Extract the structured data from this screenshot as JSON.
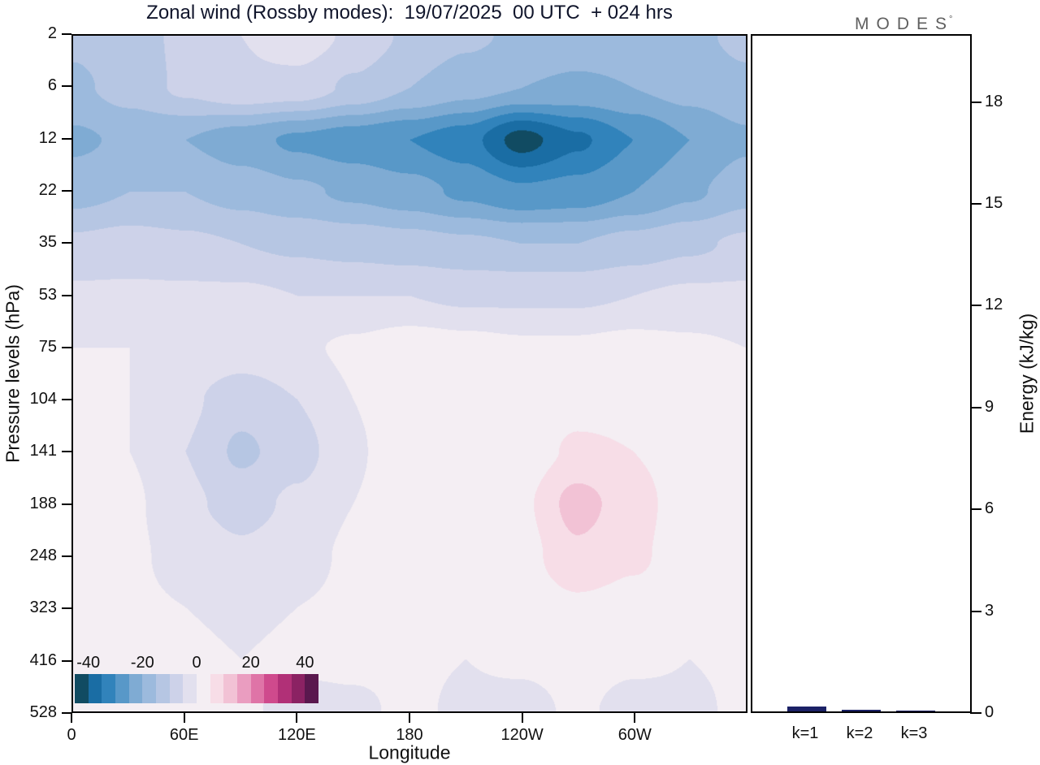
{
  "title": "Zonal wind (Rossby modes):  19/07/2025  00 UTC  + 024 hrs",
  "logo": {
    "text": "MODES",
    "degree": "°"
  },
  "axes": {
    "y_label": "Pressure levels (hPa)",
    "x_label": "Longitude",
    "energy_label": "Energy (kJ/kg)",
    "pressure_ticks": [
      "2",
      "6",
      "12",
      "22",
      "35",
      "53",
      "75",
      "104",
      "141",
      "188",
      "248",
      "323",
      "416",
      "528"
    ],
    "longitude_ticks": [
      {
        "label": "0",
        "lon": 0
      },
      {
        "label": "60E",
        "lon": 60
      },
      {
        "label": "120E",
        "lon": 120
      },
      {
        "label": "180",
        "lon": 180
      },
      {
        "label": "120W",
        "lon": 240
      },
      {
        "label": "60W",
        "lon": 300
      }
    ],
    "energy_ticks": [
      0,
      3,
      6,
      9,
      12,
      15,
      18
    ],
    "energy_axis_max": 20
  },
  "colorbar": {
    "labels": [
      {
        "text": "-40",
        "value": -40
      },
      {
        "text": "-20",
        "value": -20
      },
      {
        "text": "0",
        "value": 0
      },
      {
        "text": "20",
        "value": 20
      },
      {
        "text": "40",
        "value": 40
      }
    ]
  },
  "chart_data": [
    {
      "type": "heatmap",
      "title": "Zonal wind (Rossby modes): 19/07/2025 00 UTC + 024 hrs",
      "xlabel": "Longitude",
      "ylabel": "Pressure levels (hPa)",
      "x_lon": [
        0,
        30,
        60,
        90,
        120,
        150,
        180,
        210,
        240,
        270,
        300,
        330,
        360
      ],
      "y_pressure": [
        2,
        6,
        12,
        22,
        35,
        53,
        75,
        104,
        141,
        188,
        248,
        323,
        416,
        528
      ],
      "level_min": -45,
      "level_max": 45,
      "level_step": 5,
      "colors": [
        "#114b62",
        "#1a6da4",
        "#3183bb",
        "#5898c8",
        "#7fabd3",
        "#9cbadd",
        "#b6c6e3",
        "#cdd2e9",
        "#e2e0ee",
        "#f4eef3",
        "#f7dde7",
        "#f2c2d5",
        "#ea9dc0",
        "#df74a7",
        "#cf4a8d",
        "#b13077",
        "#8b2263",
        "#5a184e"
      ],
      "values": [
        [
          -14,
          -12,
          -9,
          -5,
          -2,
          -6,
          -11,
          -14,
          -16,
          -17,
          -17,
          -16,
          -14
        ],
        [
          -16,
          -13,
          -9,
          -6,
          -7,
          -11,
          -15,
          -18,
          -20,
          -21,
          -20,
          -18,
          -16
        ],
        [
          -21,
          -19,
          -20,
          -23,
          -26,
          -28,
          -30,
          -33,
          -42,
          -36,
          -30,
          -25,
          -21
        ],
        [
          -17,
          -15,
          -15,
          -17,
          -19,
          -21,
          -23,
          -26,
          -29,
          -28,
          -25,
          -21,
          -17
        ],
        [
          -9,
          -8,
          -9,
          -10,
          -11,
          -12,
          -13,
          -14,
          -15,
          -15,
          -13,
          -11,
          -9
        ],
        [
          -4,
          -4,
          -4,
          -4,
          -5,
          -5,
          -5,
          -6,
          -6,
          -6,
          -5,
          -4,
          -4
        ],
        [
          0,
          0,
          -1,
          -2,
          -1,
          1,
          3,
          2,
          1,
          1,
          2,
          1,
          0
        ],
        [
          1,
          0,
          -4,
          -8,
          -5,
          0,
          5,
          2,
          1,
          3,
          3,
          2,
          1
        ],
        [
          2,
          0,
          -5,
          -11,
          -7,
          -1,
          5,
          2,
          2,
          6,
          5,
          2,
          2
        ],
        [
          2,
          1,
          -4,
          -7,
          -4,
          0,
          5,
          1,
          4,
          12,
          7,
          2,
          2
        ],
        [
          1,
          1,
          -2,
          -4,
          -2,
          1,
          3,
          1,
          3,
          9,
          6,
          2,
          1
        ],
        [
          2,
          1,
          0,
          -1,
          0,
          1,
          2,
          1,
          2,
          4,
          3,
          2,
          2
        ],
        [
          1,
          1,
          1,
          0,
          1,
          1,
          1,
          0,
          1,
          2,
          1,
          0,
          1
        ],
        [
          1,
          0,
          1,
          1,
          -2,
          -1,
          1,
          -1,
          -2,
          1,
          -2,
          -1,
          1
        ]
      ]
    },
    {
      "type": "bar",
      "categories": [
        "k=1",
        "k=2",
        "k=3"
      ],
      "values": [
        0.15,
        0.05,
        0.02
      ],
      "bar_color": "#1b2166",
      "ylabel": "Energy (kJ/kg)",
      "ylim": [
        0,
        20
      ]
    }
  ]
}
